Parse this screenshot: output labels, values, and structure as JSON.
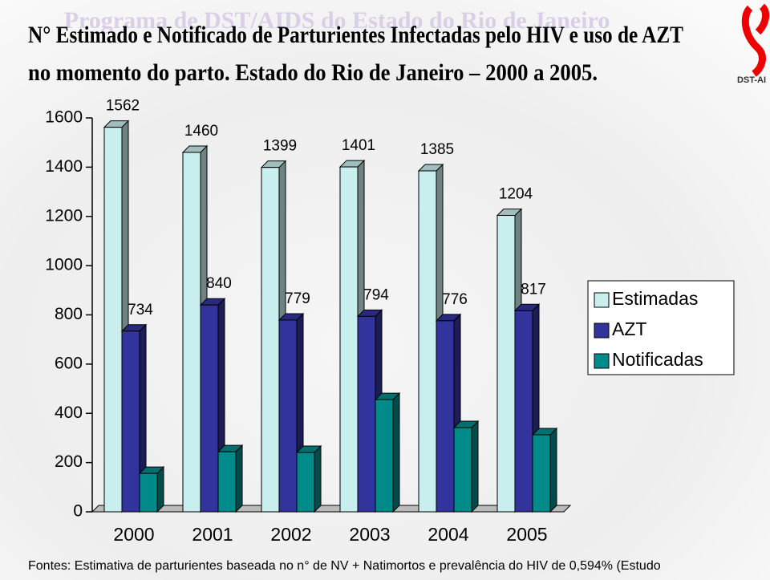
{
  "header": {
    "watermark": "Programa de DST/AIDS do Estado do Rio de Janeiro",
    "logo": "DST-AI"
  },
  "chart_data": {
    "type": "bar3d",
    "title": [
      "N° Estimado e Notificado de Parturientes Infectadas pelo HIV e uso de AZT",
      "no momento do parto. Estado do Rio de Janeiro – 2000 a 2005."
    ],
    "categories": [
      "2000",
      "2001",
      "2002",
      "2003",
      "2004",
      "2005"
    ],
    "series": [
      {
        "name": "Estimadas",
        "color": "#c9eeee",
        "values": [
          1562,
          1460,
          1399,
          1401,
          1385,
          1204
        ],
        "labels": true
      },
      {
        "name": "AZT",
        "color": "#33339e",
        "values": [
          734,
          840,
          779,
          794,
          776,
          817
        ],
        "labels": true
      },
      {
        "name": "Notificadas",
        "color": "#008b8b",
        "values": [
          156,
          244,
          241,
          456,
          342,
          313
        ],
        "labels": false
      }
    ],
    "ylim": [
      0,
      1600
    ],
    "yticks": [
      0,
      200,
      400,
      600,
      800,
      1000,
      1200,
      1400,
      1600
    ],
    "legend": "right",
    "footnote": "Fontes: Estimativa de parturientes baseada no n° de NV + Natimortos e prevalência do HIV de 0,594% (Estudo"
  }
}
